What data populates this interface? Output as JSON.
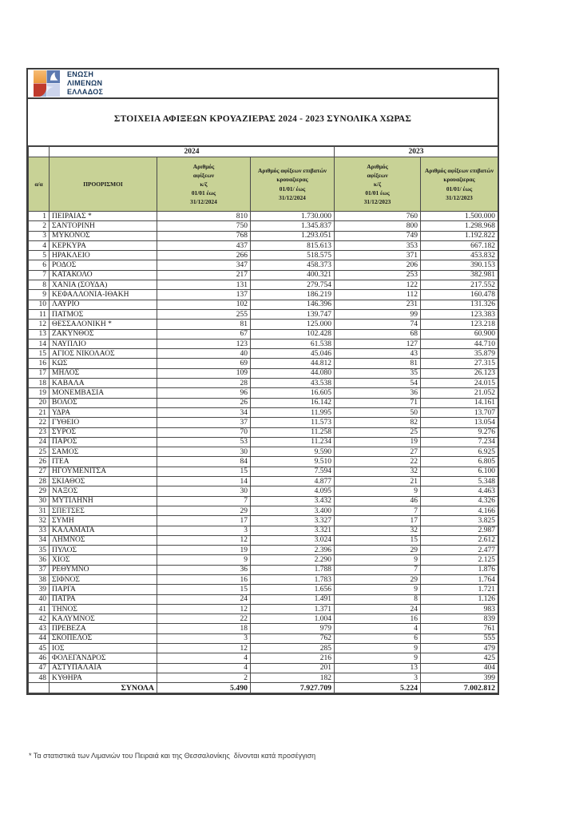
{
  "header": {
    "logo_lines": [
      "ΕΝΩΣΗ",
      "ΛΙΜΕΝΩΝ",
      "ΕΛΛΑΔΟΣ"
    ],
    "title": "ΣΤΟΙΧΕΙΑ ΑΦΙΞΕΩΝ ΚΡΟΥΑΖΙΕΡΑΣ 2024 - 2023 ΣΥΝΟΛΙΚΑ ΧΩΡΑΣ"
  },
  "table": {
    "year_groups": [
      "2024",
      "2023"
    ],
    "columns": [
      "α/α",
      "ΠΡΟΟΡΙΣΜΟΙ",
      "Αριθμός\nαφίξεων\nκ/ζ\n01/01 έως\n31/12/2024",
      "Αριθμός αφίξεων επιβατών\nκρουαζιερας\n01/01/ έως\n31/12/2024",
      "Αριθμός\nαφίξεων\nκ/ζ\n01/01 έως\n31/12/2023",
      "Αριθμός αφίξεων επιβατών\nκρουαζιερας\n01/01/ έως\n31/12/2023"
    ],
    "rows": [
      [
        "1",
        "ΠΕΙΡΑΙΑΣ *",
        "810",
        "1.730.000",
        "760",
        "1.500.000"
      ],
      [
        "2",
        "ΣΑΝΤΟΡΙΝΗ",
        "750",
        "1.345.837",
        "800",
        "1.298.968"
      ],
      [
        "3",
        "ΜΥΚΟΝΟΣ",
        "768",
        "1.293.051",
        "749",
        "1.192.822"
      ],
      [
        "4",
        "ΚΕΡΚΥΡΑ",
        "437",
        "815.613",
        "353",
        "667.182"
      ],
      [
        "5",
        "ΗΡΑΚΛΕΙΟ",
        "266",
        "518.575",
        "371",
        "453.832"
      ],
      [
        "6",
        "ΡΟΔΟΣ",
        "347",
        "458.373",
        "206",
        "390.153"
      ],
      [
        "7",
        "ΚΑΤΑΚΟΛΟ",
        "217",
        "400.321",
        "253",
        "382.981"
      ],
      [
        "8",
        "ΧΑΝΙΑ (ΣΟΥΔΑ)",
        "131",
        "279.754",
        "122",
        "217.552"
      ],
      [
        "9",
        "ΚΕΦΑΛΛΟΝΙΑ-ΙΘΑΚΗ",
        "137",
        "186.219",
        "112",
        "160.478"
      ],
      [
        "10",
        "ΛΑΥΡΙΟ",
        "102",
        "146.396",
        "231",
        "131.326"
      ],
      [
        "11",
        "ΠΑΤΜΟΣ",
        "255",
        "139.747",
        "99",
        "123.383"
      ],
      [
        "12",
        "ΘΕΣΣΑΛΟΝΙΚΗ *",
        "81",
        "125.000",
        "74",
        "123.218"
      ],
      [
        "13",
        "ΖΑΚΥΝΘΟΣ",
        "67",
        "102.428",
        "68",
        "60.900"
      ],
      [
        "14",
        "ΝΑΥΠΛΙΟ",
        "123",
        "61.538",
        "127",
        "44.710"
      ],
      [
        "15",
        "ΑΓΙΟΣ ΝΙΚΟΛΑΟΣ",
        "40",
        "45.046",
        "43",
        "35.879"
      ],
      [
        "16",
        "ΚΩΣ",
        "69",
        "44.812",
        "81",
        "27.315"
      ],
      [
        "17",
        "ΜΗΛΟΣ",
        "109",
        "44.080",
        "35",
        "26.123"
      ],
      [
        "18",
        "ΚΑΒΑΛΑ",
        "28",
        "43.538",
        "54",
        "24.015"
      ],
      [
        "19",
        "ΜΟΝΕΜΒΑΣΙΑ",
        "96",
        "16.605",
        "36",
        "21.052"
      ],
      [
        "20",
        "ΒΟΛΟΣ",
        "26",
        "16.142",
        "71",
        "14.161"
      ],
      [
        "21",
        "ΥΔΡΑ",
        "34",
        "11.995",
        "50",
        "13.707"
      ],
      [
        "22",
        "ΓΥΘΕΙΟ",
        "37",
        "11.573",
        "82",
        "13.054"
      ],
      [
        "23",
        "ΣΥΡΟΣ",
        "70",
        "11.258",
        "25",
        "9.276"
      ],
      [
        "24",
        "ΠΑΡΟΣ",
        "53",
        "11.234",
        "19",
        "7.234"
      ],
      [
        "25",
        "ΣΑΜΟΣ",
        "30",
        "9.590",
        "27",
        "6.925"
      ],
      [
        "26",
        "ΙΤΕΑ",
        "84",
        "9.510",
        "22",
        "6.805"
      ],
      [
        "27",
        "ΗΓΟΥΜΕΝΙΤΣΑ",
        "15",
        "7.594",
        "32",
        "6.100"
      ],
      [
        "28",
        "ΣΚΙΑΘΟΣ",
        "14",
        "4.877",
        "21",
        "5.348"
      ],
      [
        "29",
        "ΝΑΞΟΣ",
        "30",
        "4.095",
        "9",
        "4.463"
      ],
      [
        "30",
        "ΜΥΤΙΛΗΝΗ",
        "7",
        "3.432",
        "46",
        "4.326"
      ],
      [
        "31",
        "ΣΠΕΤΣΕΣ",
        "29",
        "3.400",
        "7",
        "4.166"
      ],
      [
        "32",
        "ΣΥΜΗ",
        "17",
        "3.327",
        "17",
        "3.825"
      ],
      [
        "33",
        "ΚΑΛΑΜΑΤΑ",
        "3",
        "3.321",
        "32",
        "2.987"
      ],
      [
        "34",
        "ΛΗΜΝΟΣ",
        "12",
        "3.024",
        "15",
        "2.612"
      ],
      [
        "35",
        "ΠΥΛΟΣ",
        "19",
        "2.396",
        "29",
        "2.477"
      ],
      [
        "36",
        "ΧΙΟΣ",
        "9",
        "2.290",
        "9",
        "2.125"
      ],
      [
        "37",
        "ΡΕΘΥΜΝΟ",
        "36",
        "1.788",
        "7",
        "1.876"
      ],
      [
        "38",
        "ΣΙΦΝΟΣ",
        "16",
        "1.783",
        "29",
        "1.764"
      ],
      [
        "39",
        "ΠΑΡΓΑ",
        "15",
        "1.656",
        "9",
        "1.721"
      ],
      [
        "40",
        "ΠΑΤΡΑ",
        "24",
        "1.491",
        "8",
        "1.126"
      ],
      [
        "41",
        "ΤΗΝΟΣ",
        "12",
        "1.371",
        "24",
        "983"
      ],
      [
        "42",
        "ΚΑΛΥΜΝΟΣ",
        "22",
        "1.004",
        "16",
        "839"
      ],
      [
        "43",
        "ΠΡΕΒΕΖΑ",
        "18",
        "979",
        "4",
        "761"
      ],
      [
        "44",
        "ΣΚΟΠΕΛΟΣ",
        "3",
        "762",
        "6",
        "555"
      ],
      [
        "45",
        "ΙΟΣ",
        "12",
        "285",
        "9",
        "479"
      ],
      [
        "46",
        "ΦΟΛΕΓΑΝΔΡΟΣ",
        "4",
        "216",
        "9",
        "425"
      ],
      [
        "47",
        "ΑΣΤΥΠΑΛΑΙΑ",
        "4",
        "201",
        "13",
        "404"
      ],
      [
        "48",
        "ΚΥΘΗΡΑ",
        "2",
        "182",
        "3",
        "399"
      ]
    ],
    "totals": {
      "label": "ΣΥΝΟΛΑ",
      "values": [
        "5.490",
        "7.927.709",
        "5.224",
        "7.002.812"
      ]
    }
  },
  "footnote": "* Τα στατιστικά των Λιμανιών του Πειραιά και της Θεσσαλονίκης  δίνονται κατά προσέγγιση",
  "colors": {
    "header_green": "#c8d296",
    "logo_orange": "#f0a24c",
    "logo_blue": "#5d7ab1",
    "logo_red": "#c03a2c",
    "logo_lavender": "#ccd4ec",
    "logo_text_navy": "#17375d"
  }
}
